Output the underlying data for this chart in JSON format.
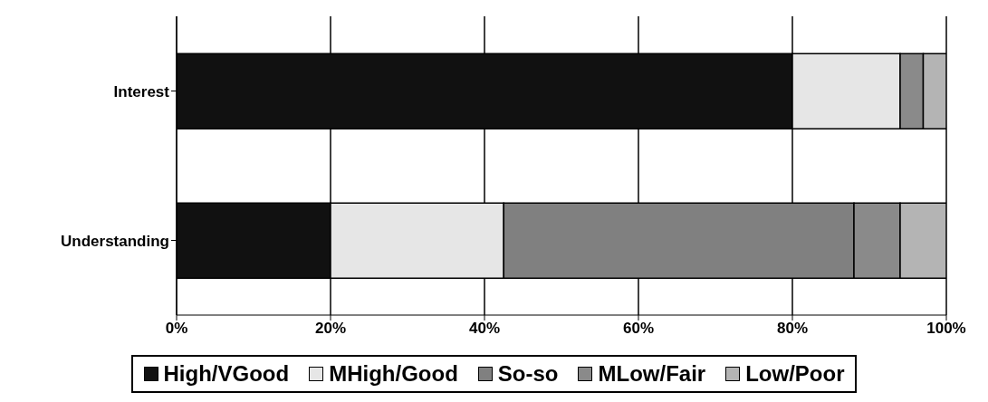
{
  "chart_data": {
    "type": "bar",
    "orientation": "horizontal",
    "stacked": true,
    "categories": [
      "Interest",
      "Understanding"
    ],
    "series": [
      {
        "name": "High/VGood",
        "color": "#111111",
        "values": [
          80,
          20
        ]
      },
      {
        "name": "MHigh/Good",
        "color": "#e6e6e6",
        "values": [
          14,
          22.5
        ]
      },
      {
        "name": "So-so",
        "color": "#808080",
        "values": [
          0,
          45.5
        ]
      },
      {
        "name": "MLow/Fair",
        "color": "#8a8a8a",
        "values": [
          3,
          6
        ]
      },
      {
        "name": "Low/Poor",
        "color": "#b4b4b4",
        "values": [
          3,
          6
        ]
      }
    ],
    "xlim": [
      0,
      100
    ],
    "xticks": [
      {
        "value": 0,
        "label": "0%"
      },
      {
        "value": 20,
        "label": "20%"
      },
      {
        "value": 40,
        "label": "40%"
      },
      {
        "value": 60,
        "label": "60%"
      },
      {
        "value": 80,
        "label": "80%"
      },
      {
        "value": 100,
        "label": "100%"
      }
    ],
    "grid": "x",
    "legend": "bottom"
  }
}
